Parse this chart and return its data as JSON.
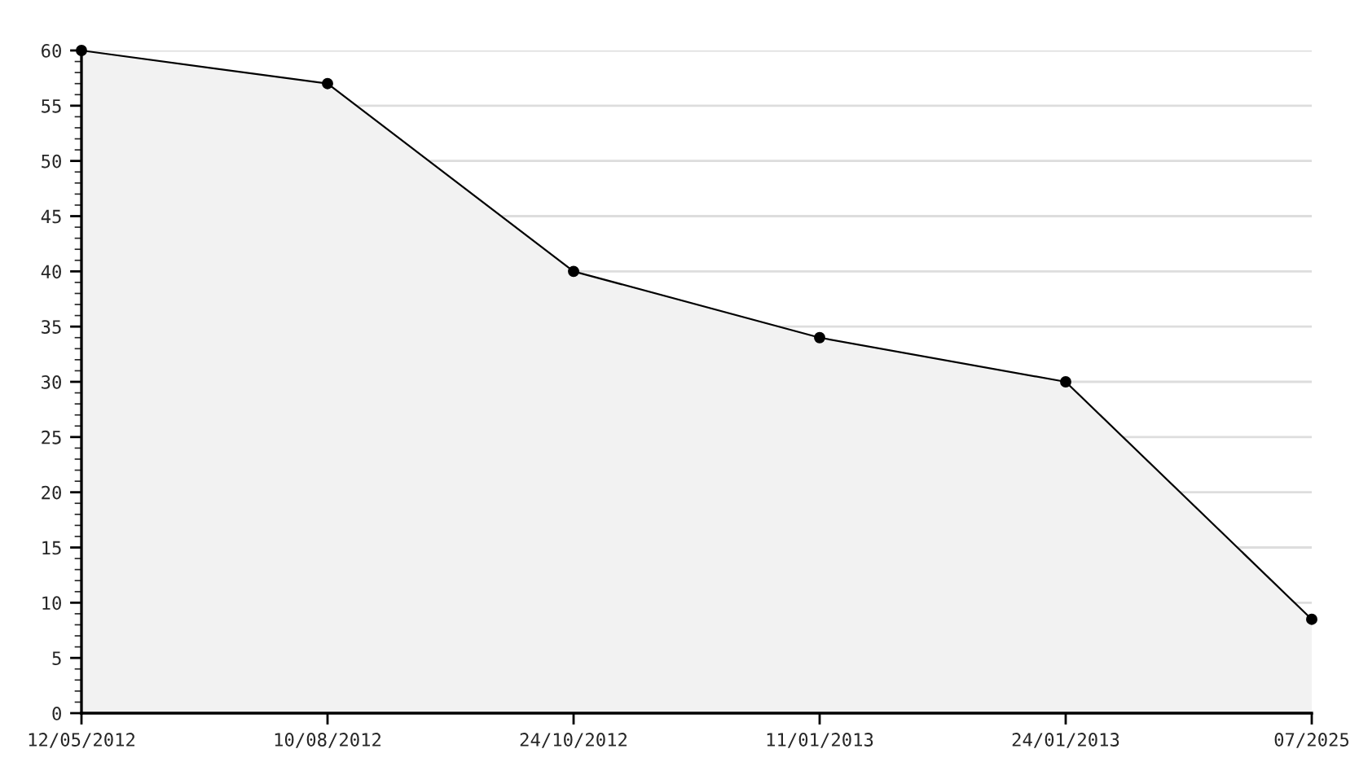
{
  "chart_data": {
    "type": "area",
    "categories": [
      "12/05/2012",
      "10/08/2012",
      "24/10/2012",
      "11/01/2013",
      "24/01/2013",
      "07/2025"
    ],
    "series": [
      {
        "color": "#000000",
        "values": [
          60,
          57,
          40,
          34,
          30,
          8.5
        ]
      }
    ],
    "ylim": [
      0,
      60
    ],
    "yticks": [
      0,
      5,
      10,
      15,
      20,
      25,
      30,
      35,
      40,
      45,
      50,
      55,
      60
    ],
    "grid": "y",
    "marker": "circle",
    "line_style": "solid"
  }
}
